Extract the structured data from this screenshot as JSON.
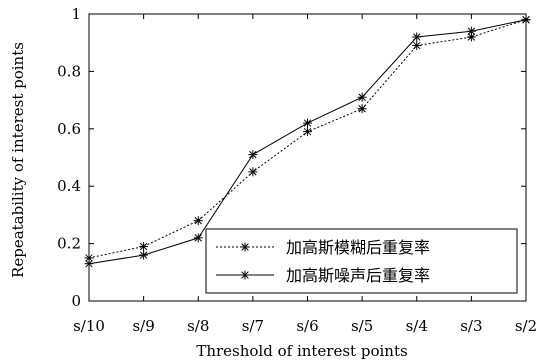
{
  "chart_data": {
    "type": "line",
    "title": "",
    "xlabel": "Threshold of interest points",
    "ylabel": "Repeatability of interest points",
    "categories": [
      "s/10",
      "s/9",
      "s/8",
      "s/7",
      "s/6",
      "s/5",
      "s/4",
      "s/3",
      "s/2"
    ],
    "ylim": [
      0,
      1
    ],
    "yticks": [
      "0",
      "0.2",
      "0.4",
      "0.6",
      "0.8",
      "1"
    ],
    "grid": false,
    "legend_position": "bottom-right",
    "series": [
      {
        "name": "加高斯模糊后重复率",
        "line_style": "dotted",
        "marker": "asterisk",
        "values": [
          0.15,
          0.19,
          0.28,
          0.45,
          0.59,
          0.67,
          0.89,
          0.92,
          0.98
        ]
      },
      {
        "name": "加高斯噪声后重复率",
        "line_style": "solid",
        "marker": "asterisk",
        "values": [
          0.13,
          0.16,
          0.22,
          0.51,
          0.62,
          0.71,
          0.92,
          0.94,
          0.98
        ]
      }
    ]
  }
}
